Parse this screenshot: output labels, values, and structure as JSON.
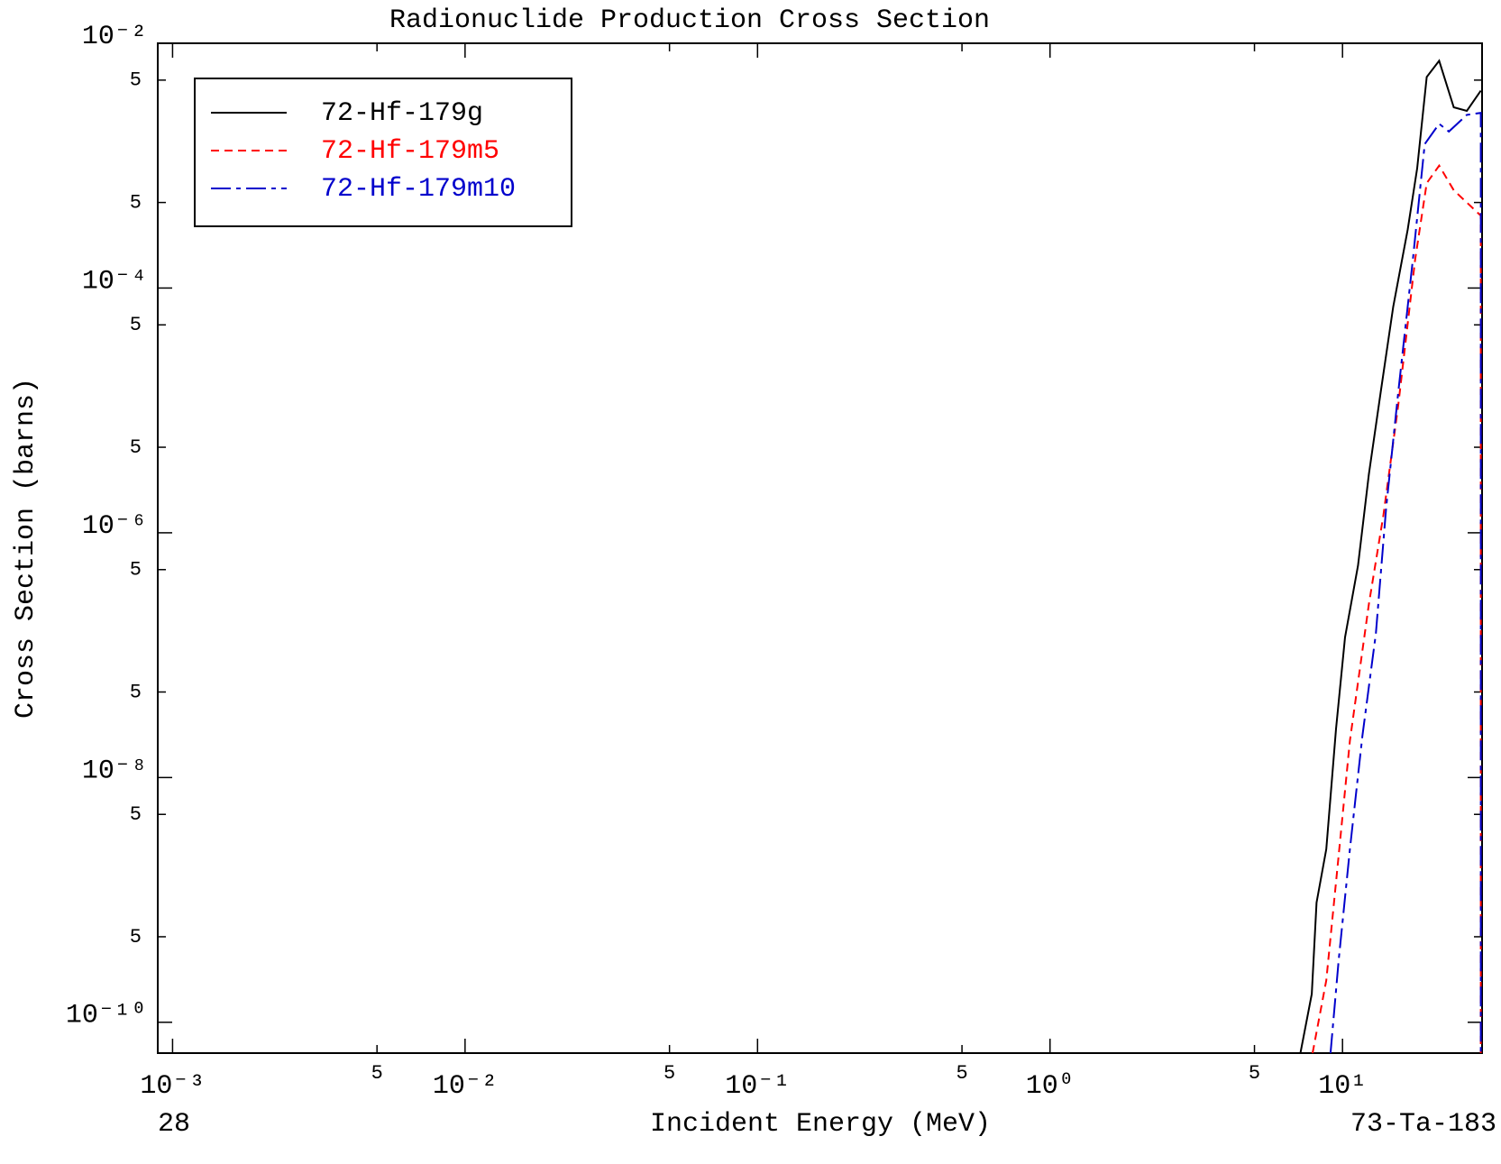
{
  "chart_data": {
    "type": "line",
    "title": "Radionuclide Production Cross Section",
    "xlabel": "Incident Energy (MeV)",
    "ylabel": "Cross Section (barns)",
    "footer_left": "28",
    "footer_right": "73-Ta-183",
    "log_x": true,
    "log_y": true,
    "legend": "upper left",
    "xlim": [
      0.00089,
      30
    ],
    "ylim": [
      5.6e-11,
      0.01
    ],
    "xticks": [
      {
        "value": 0.001,
        "label": "10⁻³"
      },
      {
        "value": 0.005,
        "label": "5"
      },
      {
        "value": 0.01,
        "label": "10⁻²"
      },
      {
        "value": 0.05,
        "label": "5"
      },
      {
        "value": 0.1,
        "label": "10⁻¹"
      },
      {
        "value": 0.5,
        "label": "5"
      },
      {
        "value": 1,
        "label": "10⁰"
      },
      {
        "value": 5,
        "label": "5"
      },
      {
        "value": 10,
        "label": "10¹"
      }
    ],
    "yticks": [
      {
        "value": 0.01,
        "label": "10⁻²"
      },
      {
        "value": 0.005,
        "label": "5"
      },
      {
        "value": 0.0005,
        "label": "5"
      },
      {
        "value": 0.0001,
        "label": "10⁻⁴"
      },
      {
        "value": 5e-05,
        "label": "5"
      },
      {
        "value": 5e-06,
        "label": "5"
      },
      {
        "value": 1e-06,
        "label": "10⁻⁶"
      },
      {
        "value": 5e-07,
        "label": "5"
      },
      {
        "value": 5e-08,
        "label": "5"
      },
      {
        "value": 1e-08,
        "label": "10⁻⁸"
      },
      {
        "value": 5e-09,
        "label": "5"
      },
      {
        "value": 5e-10,
        "label": "5"
      },
      {
        "value": 1e-10,
        "label": "10⁻¹⁰"
      }
    ],
    "series": [
      {
        "name": "72-Hf-179g",
        "color": "#000000",
        "line_style": "solid",
        "x": [
          7.18,
          7.85,
          8.15,
          8.8,
          9.5,
          10.2,
          11.3,
          12.3,
          13.5,
          14.9,
          16.7,
          18.0,
          19.4,
          21.4,
          24.0,
          26.6,
          29.7
        ],
        "values": [
          5.6e-11,
          1.7e-10,
          9.5e-10,
          2.6e-09,
          2.5e-08,
          1.4e-07,
          5.4e-07,
          3e-06,
          1.4e-05,
          7e-05,
          0.0003,
          0.00095,
          0.0053,
          0.0072,
          0.003,
          0.0028,
          0.0041
        ]
      },
      {
        "name": "72-Hf-179m5",
        "color": "#ff0000",
        "line_style": "dashed",
        "x": [
          7.9,
          8.8,
          9.7,
          10.6,
          12.3,
          13.8,
          15.5,
          17.7,
          19.4,
          21.4,
          24.0,
          29.7,
          29.7
        ],
        "values": [
          5.6e-11,
          2.2e-10,
          2.3e-09,
          2e-08,
          2.6e-07,
          1.4e-06,
          1.1e-05,
          0.00017,
          0.00072,
          0.001,
          0.00063,
          0.00039,
          5.6e-11
        ]
      },
      {
        "name": "72-Hf-179m10",
        "color": "#0000cc",
        "line_style": "dashdot",
        "x": [
          9.1,
          9.7,
          10.6,
          11.7,
          13.0,
          14.1,
          15.5,
          17.4,
          19.1,
          21.4,
          23.1,
          26.6,
          29.7,
          29.7
        ],
        "values": [
          5.6e-11,
          3.2e-10,
          2.6e-09,
          2.2e-08,
          1.5e-07,
          1.6e-06,
          1.4e-05,
          0.00017,
          0.0015,
          0.0022,
          0.0019,
          0.0026,
          0.0027,
          5.6e-11
        ]
      }
    ]
  }
}
